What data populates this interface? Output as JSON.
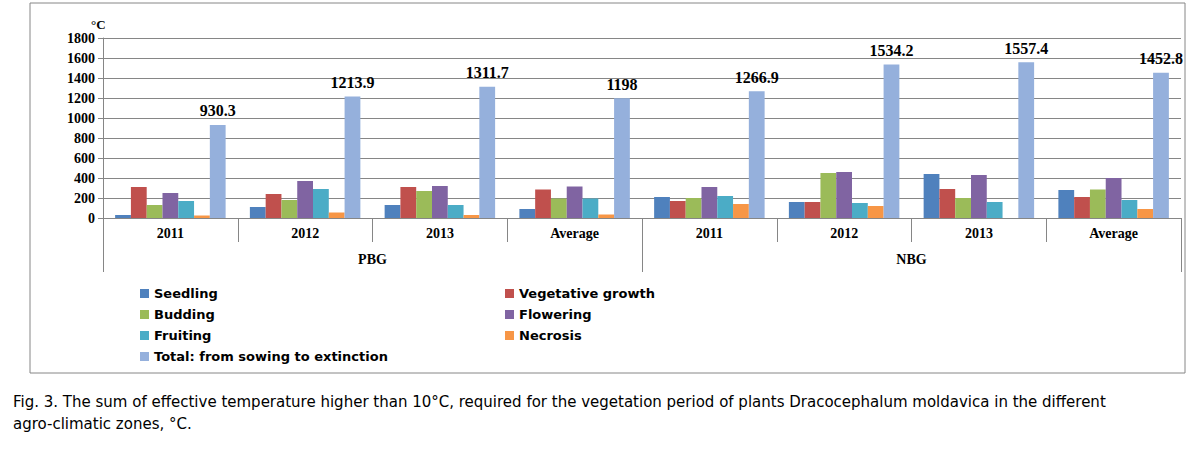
{
  "chart_data": {
    "type": "bar",
    "title": "Fig. 3. The sum of effective temperature higher than 10°C, required for the vegetation period of plants Dracocephalum moldavica in the different agro-climatic zones, °C.",
    "ylabel": "°C",
    "categories": [
      "2011",
      "2012",
      "2013",
      "Average",
      "2011",
      "2012",
      "2013",
      "Average"
    ],
    "groups": [
      "PBG",
      "PBG",
      "PBG",
      "PBG",
      "NBG",
      "NBG",
      "NBG",
      "NBG"
    ],
    "series": [
      {
        "name": "Seedling",
        "color": "#4f81bd",
        "values": [
          30,
          110,
          130,
          90,
          210,
          160,
          440,
          280
        ]
      },
      {
        "name": "Vegetative growth",
        "color": "#c0504d",
        "values": [
          310,
          240,
          310,
          285,
          170,
          160,
          290,
          210
        ]
      },
      {
        "name": "Budding",
        "color": "#9bbb59",
        "values": [
          130,
          180,
          270,
          195,
          200,
          450,
          200,
          285
        ]
      },
      {
        "name": "Flowering",
        "color": "#8064a2",
        "values": [
          250,
          370,
          320,
          315,
          310,
          460,
          430,
          400
        ]
      },
      {
        "name": "Fruiting",
        "color": "#4bacc6",
        "values": [
          170,
          290,
          130,
          195,
          220,
          150,
          160,
          180
        ]
      },
      {
        "name": "Necrosis",
        "color": "#f79646",
        "values": [
          25,
          55,
          30,
          35,
          140,
          120,
          0,
          90
        ]
      },
      {
        "name": "Total: from sowing to extinction",
        "color": "#95b0dc",
        "values": [
          930.3,
          1213.9,
          1311.7,
          1198,
          1266.9,
          1534.2,
          1557.4,
          1452.8
        ],
        "data_labels": true
      }
    ],
    "ylim": [
      0,
      1800
    ],
    "yticks": [
      0,
      200,
      400,
      600,
      800,
      1000,
      1200,
      1400,
      1600,
      1800
    ],
    "grid": true,
    "legend": "bottom"
  }
}
